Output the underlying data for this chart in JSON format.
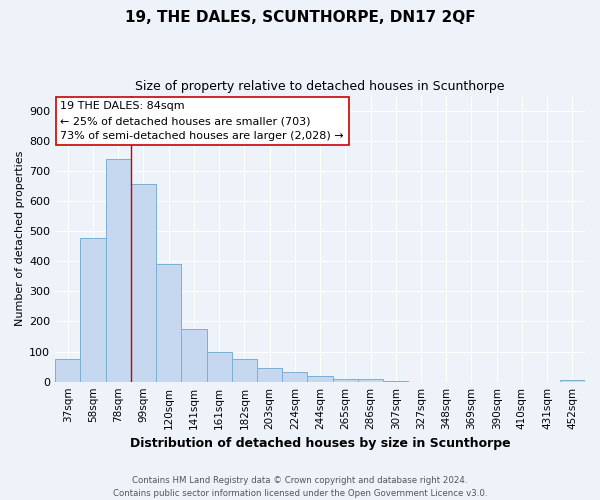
{
  "title": "19, THE DALES, SCUNTHORPE, DN17 2QF",
  "subtitle": "Size of property relative to detached houses in Scunthorpe",
  "xlabel": "Distribution of detached houses by size in Scunthorpe",
  "ylabel": "Number of detached properties",
  "bar_labels": [
    "37sqm",
    "58sqm",
    "78sqm",
    "99sqm",
    "120sqm",
    "141sqm",
    "161sqm",
    "182sqm",
    "203sqm",
    "224sqm",
    "244sqm",
    "265sqm",
    "286sqm",
    "307sqm",
    "327sqm",
    "348sqm",
    "369sqm",
    "390sqm",
    "410sqm",
    "431sqm",
    "452sqm"
  ],
  "bar_values": [
    75,
    478,
    738,
    655,
    390,
    175,
    97,
    74,
    46,
    32,
    18,
    10,
    8,
    3,
    0,
    0,
    0,
    0,
    0,
    0,
    5
  ],
  "bar_color": "#c5d8f0",
  "bar_edge_color": "#7bafd4",
  "ylim": [
    0,
    950
  ],
  "yticks": [
    0,
    100,
    200,
    300,
    400,
    500,
    600,
    700,
    800,
    900
  ],
  "vline_x": 2.5,
  "vline_color": "#cc0000",
  "annotation_title": "19 THE DALES: 84sqm",
  "annotation_line1": "← 25% of detached houses are smaller (703)",
  "annotation_line2": "73% of semi-detached houses are larger (2,028) →",
  "footer1": "Contains HM Land Registry data © Crown copyright and database right 2024.",
  "footer2": "Contains public sector information licensed under the Open Government Licence v3.0.",
  "bg_color": "#eef2f9",
  "grid_color": "#ffffff",
  "title_fontsize": 11,
  "subtitle_fontsize": 9,
  "xlabel_fontsize": 9,
  "ylabel_fontsize": 8,
  "tick_fontsize": 7.5,
  "ann_box_color": "#ffffff",
  "ann_box_edge": "#cc0000"
}
